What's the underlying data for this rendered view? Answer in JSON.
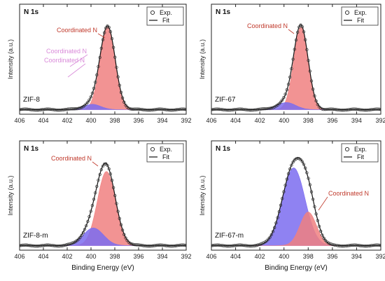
{
  "chart_data": [
    {
      "type": "area",
      "panel_title": "N 1s",
      "sample_label": "ZIF-8",
      "xlabel": "",
      "ylabel": "Intensity (a.u.)",
      "xlim": [
        406,
        392
      ],
      "x_ticks": [
        406,
        404,
        402,
        400,
        398,
        396,
        394,
        392
      ],
      "ylim": [
        0,
        1.0
      ],
      "legend": {
        "position": "top-right",
        "entries": [
          "Exp.",
          "Fit"
        ]
      },
      "background": 0.02,
      "peaks": [
        {
          "center": 398.6,
          "fwhm": 1.5,
          "height": 0.93,
          "color": "#f08080"
        },
        {
          "center": 399.9,
          "fwhm": 1.7,
          "height": 0.06,
          "color": "#7b6cf0"
        }
      ],
      "annotations": [
        {
          "text": "Coordinated N",
          "color": "#c0392b"
        },
        {
          "text": "Coordinated N",
          "color": "#d98ad9"
        },
        {
          "text": "Coordinated N",
          "color": "#d98ad9"
        }
      ]
    },
    {
      "type": "area",
      "panel_title": "N 1s",
      "sample_label": "ZIF-67",
      "xlabel": "",
      "ylabel": "Intensity (a.u.)",
      "xlim": [
        406,
        392
      ],
      "x_ticks": [
        406,
        404,
        402,
        400,
        398,
        396,
        394,
        392
      ],
      "ylim": [
        0,
        1.0
      ],
      "legend": {
        "position": "top-right",
        "entries": [
          "Exp.",
          "Fit"
        ]
      },
      "background": 0.02,
      "peaks": [
        {
          "center": 398.6,
          "fwhm": 1.4,
          "height": 0.93,
          "color": "#f08080"
        },
        {
          "center": 399.8,
          "fwhm": 1.8,
          "height": 0.08,
          "color": "#7b6cf0"
        }
      ],
      "annotations": [
        {
          "text": "Coordinated N",
          "color": "#c0392b"
        }
      ]
    },
    {
      "type": "area",
      "panel_title": "N 1s",
      "sample_label": "ZIF-8-m",
      "xlabel": "Binding Energy (eV)",
      "ylabel": "Intensity (a.u.)",
      "xlim": [
        406,
        392
      ],
      "x_ticks": [
        406,
        404,
        402,
        400,
        398,
        396,
        394,
        392
      ],
      "ylim": [
        0,
        1.0
      ],
      "legend": {
        "position": "top-right",
        "entries": [
          "Exp.",
          "Fit"
        ]
      },
      "background": 0.02,
      "peaks": [
        {
          "center": 398.7,
          "fwhm": 1.8,
          "height": 0.84,
          "color": "#f08080"
        },
        {
          "center": 399.8,
          "fwhm": 2.0,
          "height": 0.2,
          "color": "#7b6cf0"
        }
      ],
      "annotations": [
        {
          "text": "Coordinated N",
          "color": "#c0392b"
        }
      ]
    },
    {
      "type": "area",
      "panel_title": "N 1s",
      "sample_label": "ZIF-67-m",
      "xlabel": "Binding Energy (eV)",
      "ylabel": "Intensity (a.u.)",
      "xlim": [
        406,
        392
      ],
      "x_ticks": [
        406,
        404,
        402,
        400,
        398,
        396,
        394,
        392
      ],
      "ylim": [
        0,
        1.0
      ],
      "legend": {
        "position": "top-right",
        "entries": [
          "Exp.",
          "Fit"
        ]
      },
      "background": 0.02,
      "peaks": [
        {
          "center": 399.2,
          "fwhm": 2.2,
          "height": 0.88,
          "color": "#7b6cf0"
        },
        {
          "center": 398.0,
          "fwhm": 1.6,
          "height": 0.38,
          "color": "#f08080"
        }
      ],
      "annotations": [
        {
          "text": "Coordinated N",
          "color": "#c0392b"
        }
      ]
    }
  ]
}
